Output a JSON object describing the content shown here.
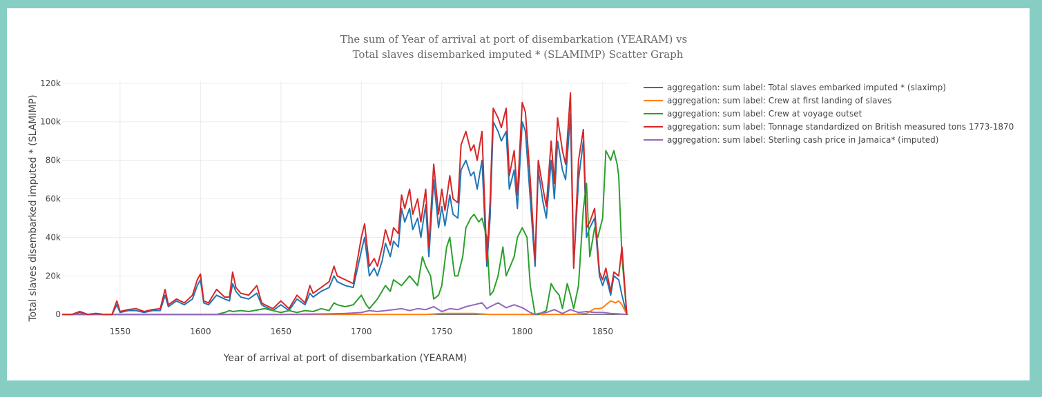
{
  "chart_data": {
    "type": "line",
    "title": [
      "The sum of Year of arrival at port of disembarkation (YEARAM) vs",
      "Total slaves disembarked imputed * (SLAMIMP) Scatter Graph"
    ],
    "xlabel": "Year of arrival at port of disembarkation (YEARAM)",
    "ylabel": "Total slaves disembarked imputed * (SLAMIMP)",
    "xlim": [
      1514,
      1866
    ],
    "ylim": [
      -1000,
      121000
    ],
    "xticks": [
      1550,
      1600,
      1650,
      1700,
      1750,
      1800,
      1850
    ],
    "yticks": [
      0,
      20000,
      40000,
      60000,
      80000,
      100000,
      120000
    ],
    "ytick_labels": [
      "0",
      "20k",
      "40k",
      "60k",
      "80k",
      "100k",
      "120k"
    ],
    "grid": true,
    "legend_position": "top-right",
    "series": [
      {
        "name": "aggregation: sum label: Total slaves embarked imputed * (slaximp)",
        "color": "#1f77b4",
        "x": [
          1514,
          1520,
          1525,
          1530,
          1535,
          1540,
          1545,
          1548,
          1550,
          1555,
          1560,
          1565,
          1570,
          1575,
          1578,
          1580,
          1585,
          1590,
          1595,
          1598,
          1600,
          1602,
          1605,
          1610,
          1615,
          1618,
          1620,
          1622,
          1625,
          1630,
          1635,
          1638,
          1640,
          1645,
          1650,
          1655,
          1660,
          1665,
          1668,
          1670,
          1675,
          1680,
          1683,
          1685,
          1690,
          1695,
          1700,
          1702,
          1705,
          1708,
          1710,
          1713,
          1715,
          1718,
          1720,
          1723,
          1725,
          1727,
          1730,
          1732,
          1735,
          1737,
          1740,
          1742,
          1745,
          1748,
          1750,
          1752,
          1755,
          1757,
          1760,
          1762,
          1765,
          1768,
          1770,
          1772,
          1775,
          1778,
          1780,
          1782,
          1785,
          1787,
          1790,
          1792,
          1795,
          1797,
          1800,
          1802,
          1805,
          1808,
          1810,
          1813,
          1815,
          1818,
          1820,
          1822,
          1825,
          1827,
          1830,
          1832,
          1835,
          1838,
          1840,
          1842,
          1845,
          1848,
          1850,
          1852,
          1855,
          1857,
          1860,
          1862,
          1865
        ],
        "y": [
          0,
          0,
          1000,
          0,
          500,
          0,
          0,
          5000,
          1000,
          2000,
          2000,
          1000,
          2000,
          2000,
          10000,
          4000,
          7000,
          5000,
          8000,
          15000,
          18000,
          6000,
          5000,
          10000,
          8000,
          7000,
          16000,
          12000,
          9000,
          8000,
          11000,
          5000,
          4000,
          2000,
          5000,
          2000,
          8000,
          5000,
          11000,
          9000,
          12000,
          14000,
          20000,
          17000,
          15000,
          14000,
          33000,
          40000,
          20000,
          24000,
          20000,
          28000,
          37000,
          30000,
          38000,
          35000,
          55000,
          48000,
          55000,
          44000,
          50000,
          40000,
          57000,
          30000,
          70000,
          45000,
          56000,
          46000,
          62000,
          52000,
          50000,
          75000,
          80000,
          72000,
          74000,
          65000,
          80000,
          25000,
          50000,
          100000,
          95000,
          90000,
          95000,
          65000,
          75000,
          55000,
          100000,
          95000,
          60000,
          25000,
          75000,
          58000,
          50000,
          80000,
          60000,
          90000,
          75000,
          70000,
          104000,
          25000,
          70000,
          90000,
          40000,
          45000,
          50000,
          20000,
          15000,
          20000,
          10000,
          20000,
          18000,
          10000,
          0
        ]
      },
      {
        "name": "aggregation: sum label: Crew at first landing of slaves",
        "color": "#ff7f0e",
        "x": [
          1514,
          1600,
          1700,
          1740,
          1750,
          1760,
          1770,
          1780,
          1790,
          1800,
          1810,
          1820,
          1830,
          1840,
          1845,
          1848,
          1850,
          1852,
          1855,
          1858,
          1860,
          1862,
          1865
        ],
        "y": [
          0,
          0,
          0,
          0,
          500,
          500,
          500,
          0,
          0,
          0,
          0,
          0,
          0,
          500,
          3000,
          3000,
          3500,
          5000,
          7000,
          6000,
          7000,
          5000,
          0
        ]
      },
      {
        "name": "aggregation: sum label: Crew at voyage outset",
        "color": "#2ca02c",
        "x": [
          1514,
          1600,
          1610,
          1615,
          1618,
          1620,
          1625,
          1630,
          1640,
          1650,
          1655,
          1660,
          1665,
          1670,
          1675,
          1680,
          1683,
          1685,
          1690,
          1695,
          1700,
          1703,
          1705,
          1710,
          1715,
          1718,
          1720,
          1725,
          1730,
          1735,
          1738,
          1740,
          1743,
          1745,
          1748,
          1750,
          1753,
          1755,
          1758,
          1760,
          1763,
          1765,
          1768,
          1770,
          1773,
          1775,
          1778,
          1780,
          1782,
          1785,
          1788,
          1790,
          1795,
          1797,
          1800,
          1803,
          1805,
          1808,
          1810,
          1815,
          1818,
          1820,
          1823,
          1825,
          1828,
          1830,
          1832,
          1835,
          1838,
          1840,
          1842,
          1845,
          1847,
          1850,
          1852,
          1855,
          1857,
          1859,
          1860,
          1862,
          1865
        ],
        "y": [
          0,
          0,
          0,
          1000,
          2000,
          1500,
          2000,
          1500,
          3000,
          1000,
          2000,
          1000,
          2000,
          1500,
          3000,
          2000,
          6000,
          5000,
          4000,
          5000,
          10000,
          5000,
          3000,
          8000,
          15000,
          12000,
          18000,
          15000,
          20000,
          15000,
          30000,
          25000,
          20000,
          8000,
          10000,
          15000,
          35000,
          40000,
          20000,
          20000,
          30000,
          45000,
          50000,
          52000,
          48000,
          50000,
          40000,
          10000,
          12000,
          20000,
          35000,
          20000,
          30000,
          40000,
          45000,
          40000,
          15000,
          0,
          0,
          2000,
          16000,
          13000,
          10000,
          3000,
          16000,
          10000,
          3000,
          15000,
          55000,
          68000,
          30000,
          45000,
          40000,
          50000,
          85000,
          80000,
          85000,
          78000,
          72000,
          30000,
          0
        ]
      },
      {
        "name": "aggregation: sum label: Tonnage standardized on British measured tons 1773-1870",
        "color": "#d62728",
        "x": [
          1514,
          1520,
          1525,
          1530,
          1535,
          1540,
          1545,
          1548,
          1550,
          1555,
          1560,
          1565,
          1570,
          1575,
          1578,
          1580,
          1585,
          1590,
          1595,
          1598,
          1600,
          1602,
          1605,
          1610,
          1615,
          1618,
          1620,
          1622,
          1625,
          1630,
          1635,
          1638,
          1640,
          1645,
          1650,
          1655,
          1660,
          1665,
          1668,
          1670,
          1675,
          1680,
          1683,
          1685,
          1690,
          1695,
          1700,
          1702,
          1705,
          1708,
          1710,
          1713,
          1715,
          1718,
          1720,
          1723,
          1725,
          1727,
          1730,
          1732,
          1735,
          1737,
          1740,
          1742,
          1745,
          1748,
          1750,
          1752,
          1755,
          1757,
          1760,
          1762,
          1765,
          1768,
          1770,
          1772,
          1775,
          1778,
          1780,
          1782,
          1785,
          1787,
          1790,
          1792,
          1795,
          1797,
          1800,
          1802,
          1805,
          1808,
          1810,
          1813,
          1815,
          1818,
          1820,
          1822,
          1825,
          1827,
          1830,
          1832,
          1835,
          1838,
          1840,
          1842,
          1845,
          1848,
          1850,
          1852,
          1855,
          1857,
          1860,
          1862,
          1865
        ],
        "y": [
          0,
          0,
          1500,
          0,
          500,
          0,
          0,
          7000,
          1500,
          2500,
          3000,
          1500,
          2500,
          3000,
          13000,
          5000,
          8000,
          6000,
          10000,
          18000,
          21000,
          7000,
          6000,
          13000,
          9000,
          9000,
          22000,
          14000,
          11000,
          10000,
          15000,
          6000,
          5000,
          3000,
          7000,
          3000,
          10000,
          6000,
          15000,
          11000,
          14000,
          17000,
          25000,
          20000,
          18000,
          16000,
          40000,
          47000,
          25000,
          29000,
          25000,
          35000,
          44000,
          36000,
          45000,
          42000,
          62000,
          55000,
          65000,
          52000,
          60000,
          48000,
          65000,
          35000,
          78000,
          52000,
          65000,
          54000,
          72000,
          60000,
          58000,
          88000,
          95000,
          85000,
          88000,
          80000,
          95000,
          28000,
          58000,
          107000,
          102000,
          97000,
          107000,
          72000,
          85000,
          62000,
          110000,
          105000,
          70000,
          28000,
          80000,
          65000,
          56000,
          90000,
          68000,
          102000,
          85000,
          78000,
          115000,
          24000,
          80000,
          96000,
          45000,
          48000,
          55000,
          22000,
          18000,
          24000,
          12000,
          22000,
          20000,
          35000,
          0
        ]
      },
      {
        "name": "aggregation: sum label: Sterling cash price in Jamaica* (imputed)",
        "color": "#9467bd",
        "x": [
          1514,
          1600,
          1650,
          1680,
          1690,
          1700,
          1705,
          1710,
          1715,
          1720,
          1725,
          1730,
          1735,
          1740,
          1745,
          1750,
          1755,
          1760,
          1765,
          1770,
          1775,
          1778,
          1780,
          1785,
          1790,
          1795,
          1800,
          1805,
          1808,
          1810,
          1815,
          1820,
          1825,
          1830,
          1835,
          1840,
          1845,
          1850,
          1855,
          1860,
          1865
        ],
        "y": [
          0,
          0,
          0,
          300,
          500,
          1000,
          2000,
          1500,
          2000,
          2500,
          3000,
          2000,
          3000,
          2500,
          4000,
          1500,
          3000,
          2500,
          4000,
          5000,
          6000,
          3000,
          4000,
          6000,
          3500,
          5000,
          3500,
          1000,
          0,
          500,
          1000,
          2500,
          500,
          2500,
          1000,
          1500,
          1000,
          1000,
          500,
          300,
          0
        ]
      }
    ]
  }
}
